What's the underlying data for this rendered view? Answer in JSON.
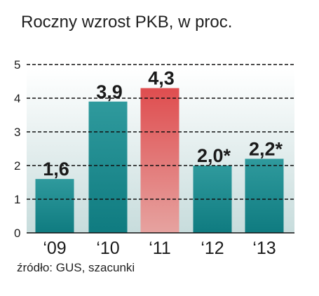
{
  "title": "Roczny wzrost PKB, w proc.",
  "source": "źródło: GUS, szacunki",
  "colors": {
    "panel_top": "#ffffff",
    "panel_bottom": "#c7dcdc",
    "bar_teal_top": "#2f9a9d",
    "bar_teal_bottom": "#0f7b80",
    "bar_red_top": "#df4d4f",
    "bar_red_bottom": "#e6a3a0",
    "grid": "#111111",
    "text": "#1a1a1a"
  },
  "chart_data": {
    "type": "bar",
    "title": "Roczny wzrost PKB, w proc.",
    "xlabel": "",
    "ylabel": "",
    "categories": [
      "‘09",
      "‘10",
      "‘11",
      "‘12",
      "‘13"
    ],
    "values": [
      1.6,
      3.9,
      4.3,
      2.0,
      2.2
    ],
    "data_labels": [
      "1,6",
      "3,9",
      "4,3",
      "2,0*",
      "2,2*"
    ],
    "highlight_index": 2,
    "ylim": [
      0,
      5
    ],
    "yticks": [
      0,
      1,
      2,
      3,
      4,
      5
    ],
    "grid": true,
    "legend": "none"
  }
}
